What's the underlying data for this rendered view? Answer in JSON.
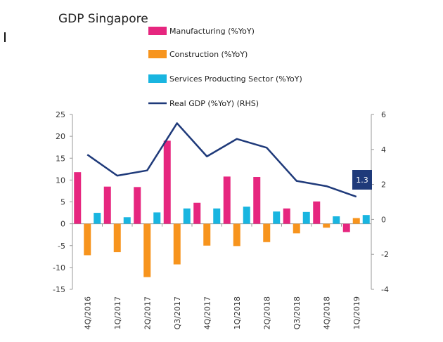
{
  "chart_data": {
    "type": "bar",
    "title": "GDP Singapore",
    "categories": [
      "4Q/2016",
      "1Q/2017",
      "2Q/2017",
      "Q3/2017",
      "4Q/2017",
      "1Q/2018",
      "2Q/2018",
      "Q3/2018",
      "4Q/2018",
      "1Q/2019"
    ],
    "series": [
      {
        "name": "Manufacturing (%YoY)",
        "type": "bar",
        "axis": "left",
        "color": "#e6267f",
        "values": [
          11.8,
          8.5,
          8.4,
          19.0,
          4.8,
          10.8,
          10.7,
          3.5,
          5.1,
          -1.9
        ]
      },
      {
        "name": "Construction  (%YoY)",
        "type": "bar",
        "axis": "left",
        "color": "#f7941d",
        "values": [
          -7.2,
          -6.5,
          -12.2,
          -9.3,
          -5.0,
          -5.1,
          -4.2,
          -2.2,
          -0.9,
          1.3
        ]
      },
      {
        "name": "Services Producting Sector (%YoY)",
        "type": "bar",
        "axis": "left",
        "color": "#19b5e0",
        "values": [
          2.5,
          1.5,
          2.6,
          3.5,
          3.5,
          3.9,
          2.8,
          2.7,
          1.7,
          2.0
        ]
      },
      {
        "name": "Real GDP (%YoY) (RHS)",
        "type": "line",
        "axis": "right",
        "color": "#1f3a7a",
        "values": [
          3.7,
          2.5,
          2.8,
          5.5,
          3.6,
          4.6,
          4.1,
          2.2,
          1.9,
          1.3
        ]
      }
    ],
    "left_axis": {
      "min": -15,
      "max": 25,
      "ticks": [
        25,
        20,
        15,
        10,
        5,
        0,
        -5,
        -10,
        -15
      ]
    },
    "right_axis": {
      "min": -4,
      "max": 6,
      "ticks": [
        6,
        4,
        2,
        0,
        -2,
        -4
      ]
    },
    "annotation": {
      "label": "1.3",
      "color": "#1f3a7a"
    },
    "legend_position": "top",
    "grid": false
  }
}
